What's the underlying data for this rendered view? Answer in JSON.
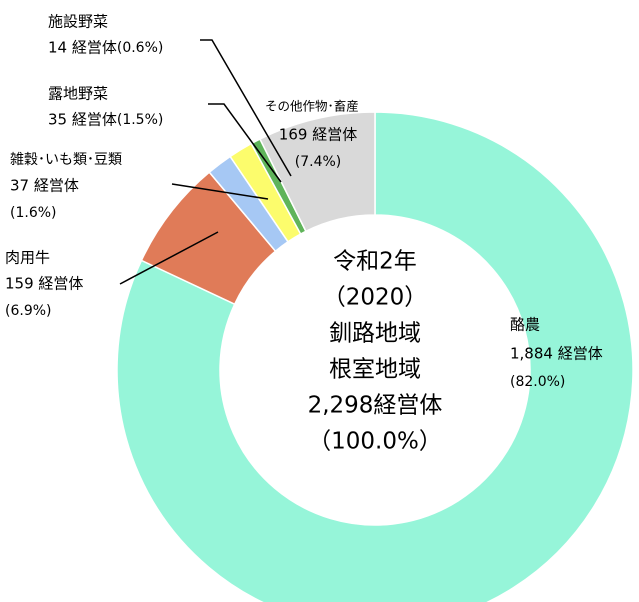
{
  "chart_data": {
    "type": "pie",
    "categories": [
      "酪農",
      "肉用牛",
      "雑穀･いも類･豆類",
      "露地野菜",
      "施設野菜",
      "その他作物･畜産"
    ],
    "values": [
      1884,
      159,
      37,
      35,
      14,
      169
    ],
    "value_labels": [
      "1,884 経営体",
      "159 経営体",
      "37 経営体",
      "35 経営体",
      "14 経営体",
      "169 経営体"
    ],
    "percent_labels": [
      "(82.0%)",
      "(6.9%)",
      "(1.6%)",
      "(1.5%)",
      "(0.6%)",
      "(7.4%)"
    ],
    "colors": [
      "#96f5d9",
      "#e07b58",
      "#a6c8f4",
      "#fcfc6c",
      "#5fb45a",
      "#d9d9d9"
    ],
    "donut": true,
    "center_text": [
      "令和2年",
      "（2020）",
      "釧路地域",
      "根室地域",
      "2,298経営体",
      "（100.0%）"
    ]
  }
}
